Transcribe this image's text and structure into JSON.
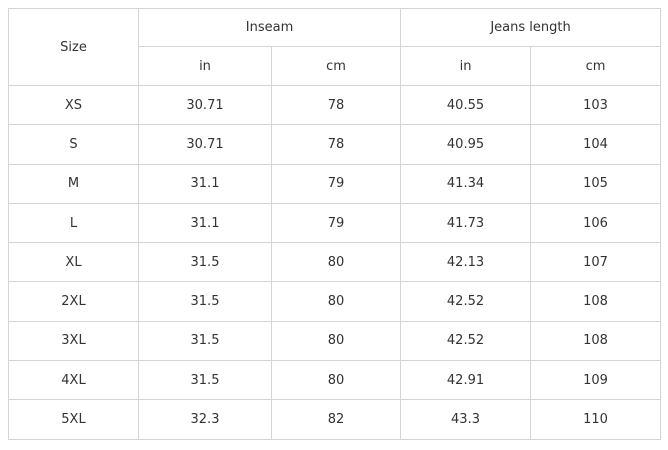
{
  "table": {
    "header": {
      "size": "Size",
      "groups": [
        {
          "title": "Inseam",
          "units": [
            "in",
            "cm"
          ]
        },
        {
          "title": "Jeans length",
          "units": [
            "in",
            "cm"
          ]
        }
      ]
    },
    "rows": [
      [
        "XS",
        "30.71",
        "78",
        "40.55",
        "103"
      ],
      [
        "S",
        "30.71",
        "78",
        "40.95",
        "104"
      ],
      [
        "M",
        "31.1",
        "79",
        "41.34",
        "105"
      ],
      [
        "L",
        "31.1",
        "79",
        "41.73",
        "106"
      ],
      [
        "XL",
        "31.5",
        "80",
        "42.13",
        "107"
      ],
      [
        "2XL",
        "31.5",
        "80",
        "42.52",
        "108"
      ],
      [
        "3XL",
        "31.5",
        "80",
        "42.52",
        "108"
      ],
      [
        "4XL",
        "31.5",
        "80",
        "42.91",
        "109"
      ],
      [
        "5XL",
        "32.3",
        "82",
        "43.3",
        "110"
      ]
    ]
  }
}
